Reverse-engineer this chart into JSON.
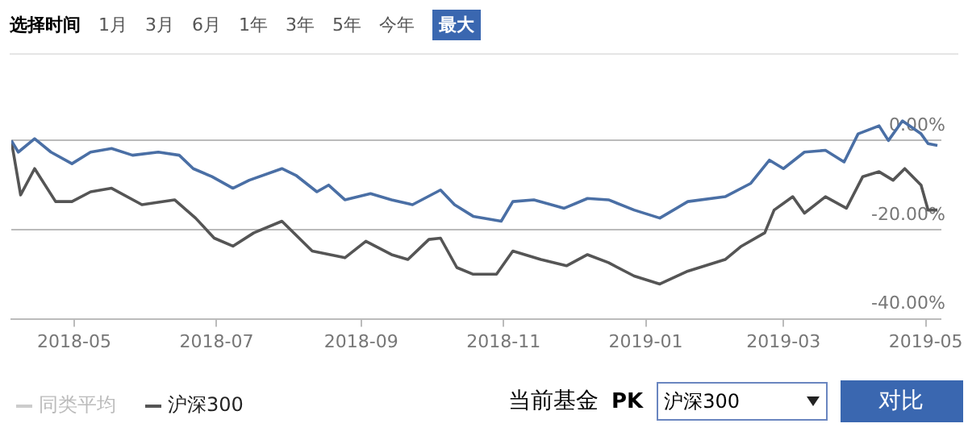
{
  "chart_data": {
    "type": "line",
    "annotations": [
      "选择时间",
      "1月",
      "3月",
      "6月",
      "1年",
      "3年",
      "5年",
      "今年",
      "最大",
      "当前基金",
      "PK",
      "沪深300",
      "对比"
    ],
    "series": [
      {
        "color": "#4a6fa5",
        "x": [
          "2018-04-04",
          "2018-04-07",
          "2018-04-14",
          "2018-04-21",
          "2018-04-30",
          "2018-05-08",
          "2018-05-17",
          "2018-05-26",
          "2018-06-06",
          "2018-06-15",
          "2018-06-21",
          "2018-06-29",
          "2018-07-08",
          "2018-07-15",
          "2018-07-29",
          "2018-08-04",
          "2018-08-13",
          "2018-08-18",
          "2018-08-25",
          "2018-09-05",
          "2018-09-14",
          "2018-09-23",
          "2018-10-05",
          "2018-10-11",
          "2018-10-19",
          "2018-10-31",
          "2018-11-05",
          "2018-11-14",
          "2018-11-27",
          "2018-12-07",
          "2018-12-16",
          "2018-12-27",
          "2019-01-07",
          "2019-01-19",
          "2019-02-04",
          "2019-02-15",
          "2019-02-23",
          "2019-03-01",
          "2019-03-10",
          "2019-03-19",
          "2019-03-27",
          "2019-04-02",
          "2019-04-11",
          "2019-04-15",
          "2019-04-21",
          "2019-04-29",
          "2019-05-02",
          "2019-05-06"
        ],
        "values": [
          0,
          -2.6,
          0.4,
          -2.6,
          -5.2,
          -2.6,
          -1.8,
          -3.3,
          -2.6,
          -3.3,
          -6.3,
          -8.1,
          -10.7,
          -8.9,
          -6.3,
          -7.8,
          -11.5,
          -10,
          -13.3,
          -11.9,
          -13.3,
          -14.4,
          -11.1,
          -14.4,
          -17,
          -18.1,
          -13.7,
          -13.3,
          -15.2,
          -13,
          -13.3,
          -15.6,
          -17.4,
          -13.7,
          -12.6,
          -9.6,
          -4.4,
          -6.3,
          -2.6,
          -2.2,
          -4.8,
          1.5,
          3.3,
          0,
          4.4,
          1.5,
          -0.7,
          -1.1
        ]
      },
      {
        "name": "同类平均",
        "color": "#cccccc"
      },
      {
        "name": "沪深300",
        "color": "#555555",
        "x": [
          "2018-04-04",
          "2018-04-08",
          "2018-04-14",
          "2018-04-23",
          "2018-04-30",
          "2018-05-08",
          "2018-05-17",
          "2018-05-30",
          "2018-06-13",
          "2018-06-22",
          "2018-06-30",
          "2018-07-08",
          "2018-07-17",
          "2018-07-29",
          "2018-08-11",
          "2018-08-25",
          "2018-09-03",
          "2018-09-14",
          "2018-09-21",
          "2018-09-30",
          "2018-10-05",
          "2018-10-12",
          "2018-10-19",
          "2018-10-29",
          "2018-11-05",
          "2018-11-17",
          "2018-11-28",
          "2018-12-07",
          "2018-12-16",
          "2018-12-27",
          "2019-01-07",
          "2019-01-19",
          "2019-02-04",
          "2019-02-11",
          "2019-02-21",
          "2019-02-25",
          "2019-03-05",
          "2019-03-10",
          "2019-03-19",
          "2019-03-28",
          "2019-04-04",
          "2019-04-11",
          "2019-04-17",
          "2019-04-22",
          "2019-04-29",
          "2019-05-02",
          "2019-05-06"
        ],
        "values": [
          0,
          -12.2,
          -6.3,
          -13.7,
          -13.7,
          -11.5,
          -10.7,
          -14.4,
          -13.3,
          -17.4,
          -21.9,
          -23.7,
          -20.7,
          -18.1,
          -24.8,
          -26.3,
          -22.6,
          -25.6,
          -26.7,
          -22.2,
          -21.9,
          -28.5,
          -30,
          -30,
          -24.8,
          -26.7,
          -28.1,
          -25.6,
          -27.4,
          -30.4,
          -32.2,
          -29.3,
          -26.7,
          -23.7,
          -20.7,
          -15.6,
          -12.6,
          -16.3,
          -12.6,
          -15.2,
          -8.1,
          -7,
          -8.9,
          -6.3,
          -10,
          -15.6,
          -15.6
        ]
      }
    ],
    "xlim": [
      "2018-04-04",
      "2019-05-08"
    ],
    "xticks": [
      {
        "value": "2018-05-01",
        "label": "2018-05"
      },
      {
        "value": "2018-07-01",
        "label": "2018-07"
      },
      {
        "value": "2018-09-01",
        "label": "2018-09"
      },
      {
        "value": "2018-11-01",
        "label": "2018-11"
      },
      {
        "value": "2019-01-01",
        "label": "2019-01"
      },
      {
        "value": "2019-03-01",
        "label": "2019-03"
      },
      {
        "value": "2019-05-01",
        "label": "2019-05"
      }
    ],
    "ylim": [
      -40,
      6
    ],
    "yticks": [
      {
        "value": -40,
        "label": "-40.00%"
      },
      {
        "value": -20,
        "label": "-20.00%"
      },
      {
        "value": 0,
        "label": "0.00%"
      }
    ],
    "grid": "y",
    "legend": "bottom left",
    "marker": "none",
    "line_style": "solid"
  }
}
